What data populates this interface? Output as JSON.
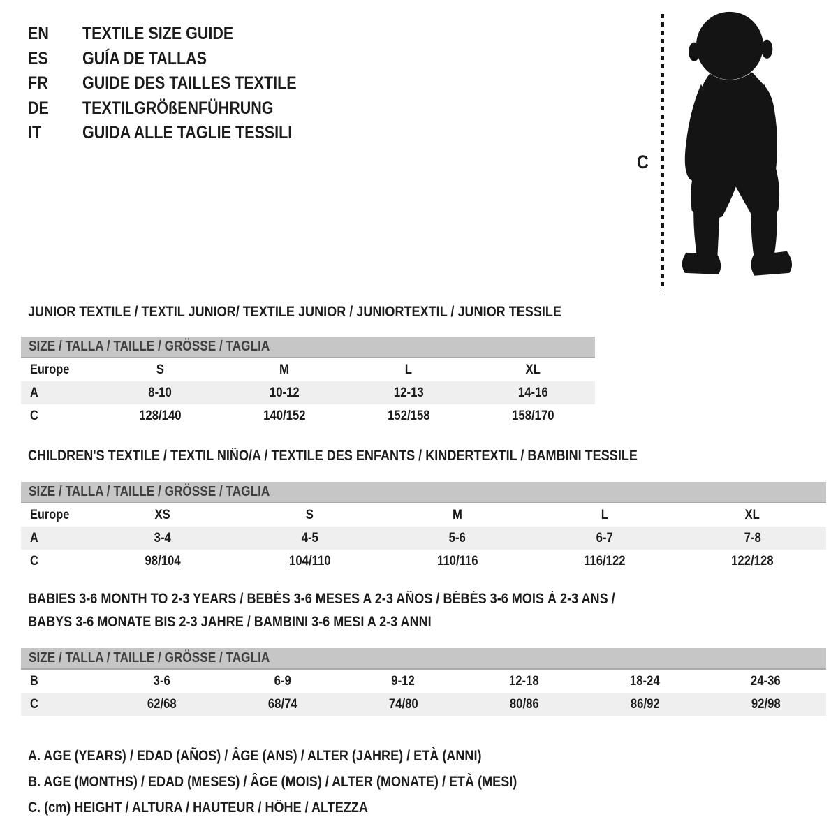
{
  "header": {
    "languages": [
      {
        "code": "EN",
        "title": "TEXTILE SIZE GUIDE"
      },
      {
        "code": "ES",
        "title": "GUÍA DE TALLAS"
      },
      {
        "code": "FR",
        "title": "GUIDE DES TAILLES TEXTILE"
      },
      {
        "code": "DE",
        "title": "TEXTILGRÖßENFÜHRUNG"
      },
      {
        "code": "IT",
        "title": "GUIDA ALLE TAGLIE TESSILI"
      }
    ]
  },
  "figure": {
    "silhouette": "toddler-standing",
    "height_marker_label": "C"
  },
  "tables": [
    {
      "title_lines": [
        "JUNIOR TEXTILE / TEXTIL JUNIOR/ TEXTILE JUNIOR / JUNIORTEXTIL / JUNIOR TESSILE"
      ],
      "size_bar": "SIZE / TALLA / TAILLE / GRÖSSE / TAGLIA",
      "rows": [
        {
          "label": "Europe",
          "values": [
            "S",
            "M",
            "L",
            "XL"
          ]
        },
        {
          "label": "A",
          "values": [
            "8-10",
            "10-12",
            "12-13",
            "14-16"
          ]
        },
        {
          "label": "C",
          "values": [
            "128/140",
            "140/152",
            "152/158",
            "158/170"
          ]
        }
      ]
    },
    {
      "title_lines": [
        "CHILDREN'S TEXTILE / TEXTIL NIÑO/A / TEXTILE DES ENFANTS / KINDERTEXTIL / BAMBINI TESSILE"
      ],
      "size_bar": "SIZE / TALLA / TAILLE / GRÖSSE / TAGLIA",
      "rows": [
        {
          "label": "Europe",
          "values": [
            "XS",
            "S",
            "M",
            "L",
            "XL"
          ]
        },
        {
          "label": "A",
          "values": [
            "3-4",
            "4-5",
            "5-6",
            "6-7",
            "7-8"
          ]
        },
        {
          "label": "C",
          "values": [
            "98/104",
            "104/110",
            "110/116",
            "116/122",
            "122/128"
          ]
        }
      ]
    },
    {
      "title_lines": [
        "BABIES 3-6 MONTH TO 2-3 YEARS / BEBÉS 3-6 MESES A 2-3 AÑOS / BÉBÉS 3-6 MOIS À 2-3 ANS /",
        "BABYS 3-6 MONATE BIS 2-3 JAHRE / BAMBINI 3-6 MESI A 2-3 ANNI"
      ],
      "size_bar": "SIZE / TALLA / TAILLE / GRÖSSE / TAGLIA",
      "rows": [
        {
          "label": "B",
          "values": [
            "3-6",
            "6-9",
            "9-12",
            "12-18",
            "18-24",
            "24-36"
          ]
        },
        {
          "label": "C",
          "values": [
            "62/68",
            "68/74",
            "74/80",
            "80/86",
            "86/92",
            "92/98"
          ]
        }
      ]
    }
  ],
  "legend": {
    "notes": [
      "A. AGE (YEARS) / EDAD (AÑOS) / ÂGE (ANS) / ALTER (JAHRE) / ETÀ (ANNI)",
      "B. AGE (MONTHS) / EDAD (MESES) / ÂGE (MOIS) / ALTER (MONATE) / ETÀ (MESI)",
      "C. (cm) HEIGHT / ALTURA / HAUTEUR / HÖHE / ALTEZZA"
    ]
  },
  "colors": {
    "background": "#ffffff",
    "text": "#1c1c1c",
    "size_bar_bg": "#c6c6c6",
    "size_bar_text": "#3f3f3f",
    "stripe_bg": "#efefef",
    "silhouette": "#141414"
  }
}
